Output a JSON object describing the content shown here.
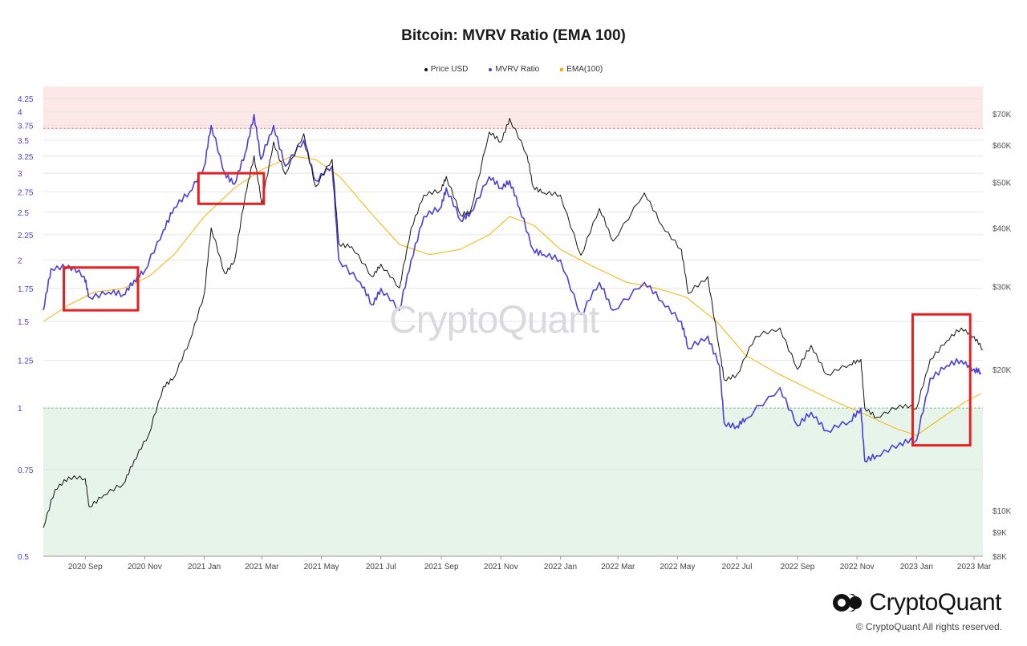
{
  "chart_data": {
    "type": "line",
    "title": "Bitcoin: MVRV Ratio (EMA 100)",
    "legend_position": "top-center",
    "legend": [
      {
        "label": "Price USD",
        "color": "#111111"
      },
      {
        "label": "MVRV Ratio",
        "color": "#4b3fd8"
      },
      {
        "label": "EMA(100)",
        "color": "#f5b300"
      }
    ],
    "x_ticks": [
      "2020 Sep",
      "2020 Nov",
      "2021 Jan",
      "2021 Mar",
      "2021 May",
      "2021 Jul",
      "2021 Sep",
      "2021 Nov",
      "2022 Jan",
      "2022 Mar",
      "2022 May",
      "2022 Jul",
      "2022 Sep",
      "2022 Nov",
      "2023 Jan",
      "2023 Mar"
    ],
    "x_range": [
      "2020-07-20",
      "2023-03-10"
    ],
    "y_left": {
      "label": "MVRV Ratio",
      "scale": "log",
      "range": [
        0.5,
        4.5
      ],
      "ticks": [
        "0.5",
        "0.75",
        "1",
        "1.25",
        "1.5",
        "1.75",
        "2",
        "2.25",
        "2.5",
        "2.75",
        "3",
        "3.25",
        "3.5",
        "3.75",
        "4",
        "4.25"
      ]
    },
    "y_right": {
      "label": "Price USD",
      "scale": "log",
      "range": [
        8000,
        80000
      ],
      "ticks": [
        "$8K",
        "$9K",
        "$10K",
        "$20K",
        "$30K",
        "$40K",
        "$50K",
        "$60K",
        "$70K"
      ]
    },
    "bands": [
      {
        "from": 3.7,
        "to": 4.5,
        "color": "#fde8e8",
        "edge": "dashed"
      },
      {
        "from": 0.5,
        "to": 1.0,
        "color": "#e6f4e9",
        "edge": "dashed"
      }
    ],
    "series": [
      {
        "name": "Price USD",
        "axis": "right",
        "color": "#111111",
        "x": [
          "2020-07-20",
          "2020-08-01",
          "2020-08-15",
          "2020-09-01",
          "2020-09-05",
          "2020-09-20",
          "2020-10-10",
          "2020-10-21",
          "2020-11-05",
          "2020-11-20",
          "2020-12-01",
          "2020-12-17",
          "2021-01-01",
          "2021-01-08",
          "2021-01-22",
          "2021-02-01",
          "2021-02-12",
          "2021-02-21",
          "2021-03-01",
          "2021-03-13",
          "2021-03-25",
          "2021-04-13",
          "2021-04-25",
          "2021-05-12",
          "2021-05-19",
          "2021-06-01",
          "2021-06-22",
          "2021-07-01",
          "2021-07-20",
          "2021-08-01",
          "2021-08-14",
          "2021-08-31",
          "2021-09-06",
          "2021-09-21",
          "2021-10-01",
          "2021-10-20",
          "2021-11-01",
          "2021-11-10",
          "2021-11-28",
          "2021-12-04",
          "2021-12-15",
          "2022-01-01",
          "2022-01-22",
          "2022-02-10",
          "2022-02-24",
          "2022-03-28",
          "2022-04-15",
          "2022-05-05",
          "2022-05-12",
          "2022-06-01",
          "2022-06-13",
          "2022-06-18",
          "2022-07-01",
          "2022-07-20",
          "2022-08-14",
          "2022-09-01",
          "2022-09-15",
          "2022-10-01",
          "2022-10-25",
          "2022-11-05",
          "2022-11-09",
          "2022-11-21",
          "2022-12-15",
          "2023-01-01",
          "2023-01-15",
          "2023-02-01",
          "2023-02-16",
          "2023-03-01",
          "2023-03-10"
        ],
        "y": [
          9200,
          11100,
          11800,
          11700,
          10200,
          10800,
          11400,
          12800,
          14500,
          18400,
          19200,
          23000,
          29000,
          40000,
          32000,
          34000,
          47000,
          57000,
          45000,
          61000,
          52000,
          63500,
          49000,
          56000,
          37000,
          36500,
          31500,
          33500,
          29800,
          40000,
          47000,
          48000,
          51500,
          42500,
          43500,
          64000,
          61000,
          68500,
          57000,
          49000,
          47500,
          47000,
          35000,
          44000,
          37500,
          47500,
          40500,
          36000,
          29000,
          31500,
          22000,
          19000,
          19500,
          23500,
          24500,
          20000,
          22500,
          19500,
          20500,
          21000,
          16500,
          15800,
          16800,
          16500,
          21000,
          23000,
          24500,
          23500,
          22000
        ]
      },
      {
        "name": "MVRV Ratio",
        "axis": "left",
        "color": "#4b3fd8",
        "x": [
          "2020-07-20",
          "2020-07-28",
          "2020-08-15",
          "2020-08-31",
          "2020-09-05",
          "2020-09-25",
          "2020-10-10",
          "2020-10-21",
          "2020-11-01",
          "2020-11-20",
          "2020-12-01",
          "2020-12-17",
          "2021-01-01",
          "2021-01-08",
          "2021-01-22",
          "2021-02-01",
          "2021-02-12",
          "2021-02-21",
          "2021-02-28",
          "2021-03-13",
          "2021-03-25",
          "2021-04-13",
          "2021-04-25",
          "2021-05-12",
          "2021-05-19",
          "2021-06-10",
          "2021-06-22",
          "2021-07-01",
          "2021-07-20",
          "2021-08-01",
          "2021-08-14",
          "2021-08-31",
          "2021-09-06",
          "2021-09-21",
          "2021-10-01",
          "2021-10-20",
          "2021-11-01",
          "2021-11-10",
          "2021-11-20",
          "2021-12-04",
          "2021-12-15",
          "2022-01-01",
          "2022-01-22",
          "2022-02-10",
          "2022-02-24",
          "2022-03-28",
          "2022-04-15",
          "2022-05-05",
          "2022-05-12",
          "2022-06-01",
          "2022-06-13",
          "2022-06-18",
          "2022-07-01",
          "2022-07-10",
          "2022-08-14",
          "2022-09-01",
          "2022-09-15",
          "2022-10-01",
          "2022-10-25",
          "2022-11-05",
          "2022-11-09",
          "2022-11-21",
          "2022-12-15",
          "2023-01-01",
          "2023-01-15",
          "2023-02-01",
          "2023-02-16",
          "2023-03-01",
          "2023-03-08"
        ],
        "y": [
          1.58,
          1.92,
          1.95,
          1.85,
          1.68,
          1.72,
          1.7,
          1.82,
          1.9,
          2.3,
          2.55,
          2.75,
          3.1,
          3.75,
          3.0,
          2.85,
          3.3,
          3.95,
          3.2,
          3.75,
          3.1,
          3.5,
          2.9,
          3.1,
          2.0,
          1.8,
          1.62,
          1.75,
          1.58,
          2.0,
          2.45,
          2.55,
          2.8,
          2.4,
          2.5,
          2.95,
          2.8,
          2.9,
          2.55,
          2.1,
          2.05,
          2.0,
          1.55,
          1.8,
          1.58,
          1.8,
          1.65,
          1.5,
          1.32,
          1.4,
          1.22,
          0.93,
          0.92,
          0.95,
          1.1,
          0.92,
          0.98,
          0.9,
          0.94,
          1.0,
          0.78,
          0.8,
          0.85,
          0.86,
          1.15,
          1.22,
          1.25,
          1.2,
          1.18
        ]
      },
      {
        "name": "EMA(100)",
        "axis": "left",
        "color": "#f5b300",
        "x": [
          "2020-07-20",
          "2020-08-15",
          "2020-09-10",
          "2020-10-10",
          "2020-11-05",
          "2020-12-01",
          "2021-01-01",
          "2021-02-01",
          "2021-03-01",
          "2021-04-01",
          "2021-04-25",
          "2021-05-20",
          "2021-06-20",
          "2021-07-20",
          "2021-08-20",
          "2021-09-20",
          "2021-10-20",
          "2021-11-10",
          "2021-12-05",
          "2022-01-01",
          "2022-02-01",
          "2022-03-10",
          "2022-04-10",
          "2022-05-10",
          "2022-06-10",
          "2022-07-10",
          "2022-08-10",
          "2022-09-10",
          "2022-10-10",
          "2022-11-10",
          "2022-12-10",
          "2023-01-01",
          "2023-01-25",
          "2023-02-20",
          "2023-03-08"
        ],
        "y": [
          1.5,
          1.62,
          1.72,
          1.75,
          1.85,
          2.05,
          2.45,
          2.8,
          3.05,
          3.25,
          3.2,
          2.95,
          2.5,
          2.15,
          2.05,
          2.1,
          2.25,
          2.45,
          2.35,
          2.1,
          1.95,
          1.8,
          1.75,
          1.68,
          1.5,
          1.28,
          1.18,
          1.1,
          1.03,
          0.97,
          0.91,
          0.88,
          0.95,
          1.03,
          1.07
        ]
      }
    ],
    "annotations": [
      {
        "type": "rect",
        "color": "#e62020",
        "from_date": "2020-08-10",
        "to_date": "2020-10-25",
        "y_top": 1.93,
        "y_bottom": 1.58
      },
      {
        "type": "rect",
        "color": "#e62020",
        "from_date": "2020-12-26",
        "to_date": "2021-03-03",
        "y_top": 3.0,
        "y_bottom": 2.6
      },
      {
        "type": "rect",
        "color": "#e62020",
        "from_date": "2022-12-28",
        "to_date": "2023-02-25",
        "y_top": 1.55,
        "y_bottom": 0.84
      }
    ]
  },
  "watermark": "CryptoQuant",
  "brand": {
    "name": "CryptoQuant",
    "copyright": "© CryptoQuant All rights reserved."
  }
}
